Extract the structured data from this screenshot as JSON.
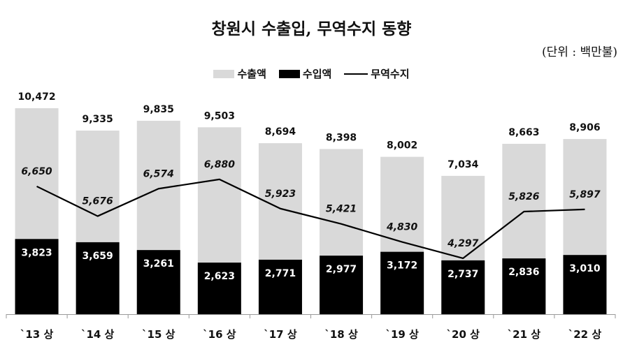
{
  "title": "창원시 수출입, 무역수지 동향",
  "unit": "(단위 : 백만불)",
  "chart_data": {
    "type": "bar",
    "categories": [
      "`13 상",
      "`14 상",
      "`15 상",
      "`16 상",
      "`17 상",
      "`18 상",
      "`19 상",
      "`20 상",
      "`21 상",
      "`22 상"
    ],
    "series": [
      {
        "name": "수출액",
        "values": [
          10472,
          9335,
          9835,
          9503,
          8694,
          8398,
          8002,
          7034,
          8663,
          8906
        ],
        "color": "#d9d9d9"
      },
      {
        "name": "수입액",
        "values": [
          3823,
          3659,
          3261,
          2623,
          2771,
          2977,
          3172,
          2737,
          2836,
          3010
        ],
        "color": "#000000"
      },
      {
        "name": "무역수지",
        "values": [
          6650,
          5676,
          6574,
          6880,
          5923,
          5421,
          4830,
          4297,
          5826,
          5897
        ],
        "type": "line",
        "color": "#000000"
      }
    ],
    "export_labels": [
      "10,472",
      "9,335",
      "9,835",
      "9,503",
      "8,694",
      "8,398",
      "8,002",
      "7,034",
      "8,663",
      "8,906"
    ],
    "import_labels": [
      "3,823",
      "3,659",
      "3,261",
      "2,623",
      "2,771",
      "2,977",
      "3,172",
      "2,737",
      "2,836",
      "3,010"
    ],
    "balance_labels": [
      "6,650",
      "5,676",
      "6,574",
      "6,880",
      "5,923",
      "5,421",
      "4,830",
      "4,297",
      "5,826",
      "5,897"
    ],
    "legend_position": "top-center",
    "grid": false
  },
  "legend": {
    "exports": "수출액",
    "imports": "수입액",
    "balance": "무역수지"
  }
}
